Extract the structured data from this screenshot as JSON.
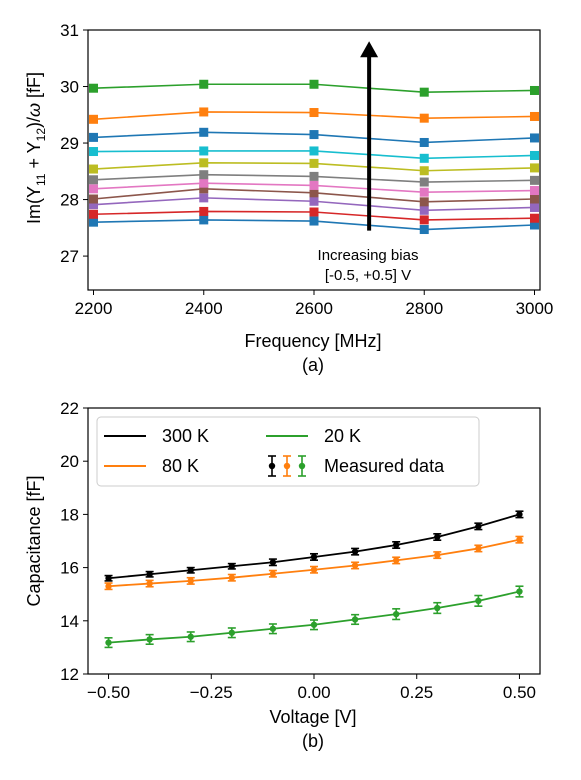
{
  "colors": {
    "blue": "#1f77b4",
    "orange": "#ff7f0e",
    "green": "#2ca02c",
    "red": "#d62728",
    "purple": "#9467bd",
    "brown": "#8c564b",
    "pink": "#e377c2",
    "gray": "#7f7f7f",
    "olive": "#bcbd22",
    "cyan": "#17becf",
    "black": "#000000"
  },
  "chart_data": [
    {
      "type": "line",
      "panel_label": "(a)",
      "xlabel": "Frequency [MHz]",
      "ylabel_parts": {
        "pre": "Im(Y",
        "sub1": "11",
        "mid": " + Y",
        "sub2": "12",
        "post": ")/",
        "omega": "ω",
        "unit": " [fF]"
      },
      "xlim": [
        2190,
        3010
      ],
      "ylim": [
        26.4,
        31.0
      ],
      "xticks": [
        2200,
        2400,
        2600,
        2800,
        3000
      ],
      "yticks": [
        27,
        28,
        29,
        30,
        31
      ],
      "x": [
        2200,
        2400,
        2600,
        2800,
        3000
      ],
      "series": [
        {
          "color": "blue",
          "values": [
            27.6,
            27.64,
            27.62,
            27.47,
            27.55
          ]
        },
        {
          "color": "red",
          "values": [
            27.74,
            27.79,
            27.78,
            27.64,
            27.67
          ]
        },
        {
          "color": "purple",
          "values": [
            27.91,
            28.03,
            27.97,
            27.81,
            27.86
          ]
        },
        {
          "color": "brown",
          "values": [
            28.01,
            28.19,
            28.12,
            27.96,
            28.01
          ]
        },
        {
          "color": "pink",
          "values": [
            28.19,
            28.29,
            28.25,
            28.13,
            28.16
          ]
        },
        {
          "color": "gray",
          "values": [
            28.35,
            28.44,
            28.41,
            28.31,
            28.34
          ]
        },
        {
          "color": "olive",
          "values": [
            28.54,
            28.65,
            28.64,
            28.51,
            28.56
          ]
        },
        {
          "color": "cyan",
          "values": [
            28.85,
            28.86,
            28.86,
            28.73,
            28.78
          ]
        },
        {
          "color": "blue",
          "values": [
            29.1,
            29.19,
            29.15,
            29.01,
            29.09
          ]
        },
        {
          "color": "orange",
          "values": [
            29.42,
            29.55,
            29.54,
            29.44,
            29.47
          ]
        },
        {
          "color": "green",
          "values": [
            29.97,
            30.04,
            30.04,
            29.9,
            29.93
          ]
        }
      ],
      "annotation": {
        "lines": [
          "Increasing bias",
          "[-0.5, +0.5] V"
        ],
        "arrow_x": 2700,
        "arrow_from": 27.45,
        "arrow_to": 30.8
      }
    },
    {
      "type": "line",
      "panel_label": "(b)",
      "xlabel": "Voltage [V]",
      "ylabel": "Capacitance [fF]",
      "xlim": [
        -0.55,
        0.55
      ],
      "ylim": [
        12,
        22
      ],
      "xticks": [
        -0.5,
        -0.25,
        0.0,
        0.25,
        0.5
      ],
      "xtick_labels": [
        "−0.50",
        "−0.25",
        "0.00",
        "0.25",
        "0.50"
      ],
      "yticks": [
        12,
        14,
        16,
        18,
        20,
        22
      ],
      "x": [
        -0.5,
        -0.4,
        -0.3,
        -0.2,
        -0.1,
        0.0,
        0.1,
        0.2,
        0.3,
        0.4,
        0.5
      ],
      "series": [
        {
          "name": "300 K",
          "color": "black",
          "values": [
            15.6,
            15.75,
            15.9,
            16.05,
            16.2,
            16.4,
            16.6,
            16.85,
            17.15,
            17.55,
            18.0
          ],
          "errors": [
            0.1,
            0.1,
            0.1,
            0.1,
            0.12,
            0.12,
            0.12,
            0.12,
            0.12,
            0.12,
            0.12
          ]
        },
        {
          "name": "80 K",
          "color": "orange",
          "values": [
            15.3,
            15.4,
            15.5,
            15.62,
            15.77,
            15.92,
            16.08,
            16.27,
            16.47,
            16.72,
            17.05
          ],
          "errors": [
            0.12,
            0.12,
            0.12,
            0.12,
            0.12,
            0.12,
            0.12,
            0.12,
            0.12,
            0.12,
            0.12
          ]
        },
        {
          "name": "20 K",
          "color": "green",
          "values": [
            13.18,
            13.3,
            13.4,
            13.55,
            13.7,
            13.85,
            14.05,
            14.25,
            14.48,
            14.75,
            15.1
          ],
          "errors": [
            0.18,
            0.18,
            0.18,
            0.18,
            0.18,
            0.18,
            0.18,
            0.2,
            0.2,
            0.2,
            0.2
          ]
        }
      ],
      "legend": {
        "position": "upper-left",
        "items": [
          {
            "label": "300 K",
            "color": "black",
            "kind": "line"
          },
          {
            "label": "20 K",
            "color": "green",
            "kind": "line"
          },
          {
            "label": "80 K",
            "color": "orange",
            "kind": "line"
          },
          {
            "label": "Measured data",
            "kind": "errorbars",
            "colors": [
              "black",
              "orange",
              "green"
            ]
          }
        ]
      }
    }
  ]
}
